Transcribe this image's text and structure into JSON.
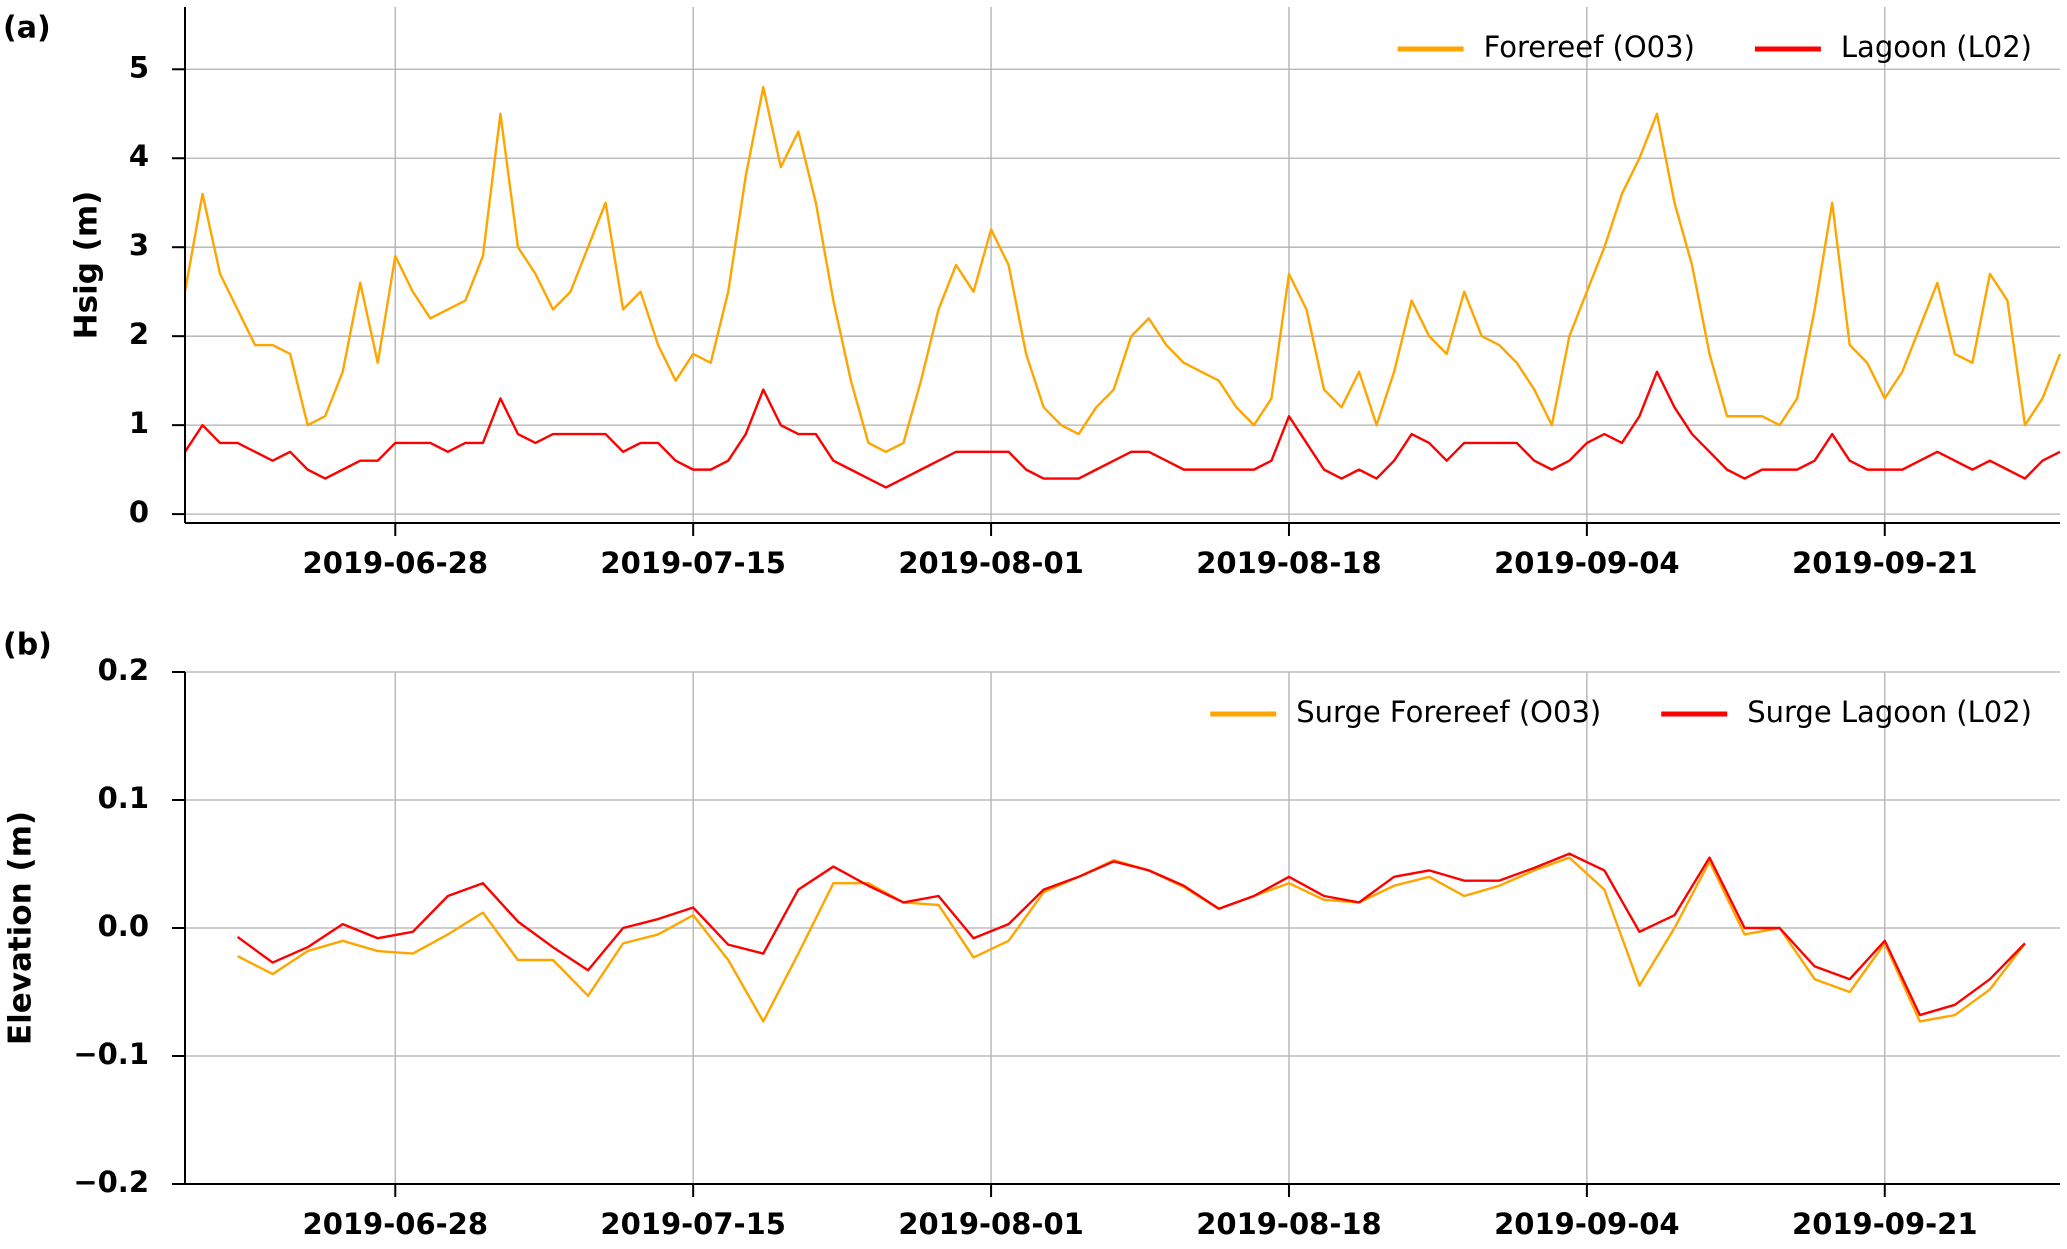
{
  "chart_data": [
    {
      "type": "line",
      "panel_label": "(a)",
      "ylabel": "Hsig (m)",
      "x": [
        "2019-06-16",
        "2019-06-17",
        "2019-06-18",
        "2019-06-19",
        "2019-06-20",
        "2019-06-21",
        "2019-06-22",
        "2019-06-23",
        "2019-06-24",
        "2019-06-25",
        "2019-06-26",
        "2019-06-27",
        "2019-06-28",
        "2019-06-29",
        "2019-06-30",
        "2019-07-01",
        "2019-07-02",
        "2019-07-03",
        "2019-07-04",
        "2019-07-05",
        "2019-07-06",
        "2019-07-07",
        "2019-07-08",
        "2019-07-09",
        "2019-07-10",
        "2019-07-11",
        "2019-07-12",
        "2019-07-13",
        "2019-07-14",
        "2019-07-15",
        "2019-07-16",
        "2019-07-17",
        "2019-07-18",
        "2019-07-19",
        "2019-07-20",
        "2019-07-21",
        "2019-07-22",
        "2019-07-23",
        "2019-07-24",
        "2019-07-25",
        "2019-07-26",
        "2019-07-27",
        "2019-07-28",
        "2019-07-29",
        "2019-07-30",
        "2019-07-31",
        "2019-08-01",
        "2019-08-02",
        "2019-08-03",
        "2019-08-04",
        "2019-08-05",
        "2019-08-06",
        "2019-08-07",
        "2019-08-08",
        "2019-08-09",
        "2019-08-10",
        "2019-08-11",
        "2019-08-12",
        "2019-08-13",
        "2019-08-14",
        "2019-08-15",
        "2019-08-16",
        "2019-08-17",
        "2019-08-18",
        "2019-08-19",
        "2019-08-20",
        "2019-08-21",
        "2019-08-22",
        "2019-08-23",
        "2019-08-24",
        "2019-08-25",
        "2019-08-26",
        "2019-08-27",
        "2019-08-28",
        "2019-08-29",
        "2019-08-30",
        "2019-08-31",
        "2019-09-01",
        "2019-09-02",
        "2019-09-03",
        "2019-09-04",
        "2019-09-05",
        "2019-09-06",
        "2019-09-07",
        "2019-09-08",
        "2019-09-09",
        "2019-09-10",
        "2019-09-11",
        "2019-09-12",
        "2019-09-13",
        "2019-09-14",
        "2019-09-15",
        "2019-09-16",
        "2019-09-17",
        "2019-09-18",
        "2019-09-19",
        "2019-09-20",
        "2019-09-21",
        "2019-09-22",
        "2019-09-23",
        "2019-09-24",
        "2019-09-25",
        "2019-09-26",
        "2019-09-27",
        "2019-09-28",
        "2019-09-29",
        "2019-09-30",
        "2019-10-01"
      ],
      "series": [
        {
          "name": "Forereef (O03)",
          "color": "#ffa500",
          "values": [
            2.5,
            3.6,
            2.7,
            2.3,
            1.9,
            1.9,
            1.8,
            1.0,
            1.1,
            1.6,
            2.6,
            1.7,
            2.9,
            2.5,
            2.2,
            2.3,
            2.4,
            2.9,
            4.5,
            3.0,
            2.7,
            2.3,
            2.5,
            3.0,
            3.5,
            2.3,
            2.5,
            1.9,
            1.5,
            1.8,
            1.7,
            2.5,
            3.8,
            4.8,
            3.9,
            4.3,
            3.5,
            2.4,
            1.5,
            0.8,
            0.7,
            0.8,
            1.5,
            2.3,
            2.8,
            2.5,
            3.2,
            2.8,
            1.8,
            1.2,
            1.0,
            0.9,
            1.2,
            1.4,
            2.0,
            2.2,
            1.9,
            1.7,
            1.6,
            1.5,
            1.2,
            1.0,
            1.3,
            2.7,
            2.3,
            1.4,
            1.2,
            1.6,
            1.0,
            1.6,
            2.4,
            2.0,
            1.8,
            2.5,
            2.0,
            1.9,
            1.7,
            1.4,
            1.0,
            2.0,
            2.5,
            3.0,
            3.6,
            4.0,
            4.5,
            3.5,
            2.8,
            1.8,
            1.1,
            1.1,
            1.1,
            1.0,
            1.3,
            2.3,
            3.5,
            1.9,
            1.7,
            1.3,
            1.6,
            2.1,
            2.6,
            1.8,
            1.7,
            2.7,
            2.4,
            1.0,
            1.3,
            1.8
          ]
        },
        {
          "name": "Lagoon (L02)",
          "color": "#ff0000",
          "values": [
            0.7,
            1.0,
            0.8,
            0.8,
            0.7,
            0.6,
            0.7,
            0.5,
            0.4,
            0.5,
            0.6,
            0.6,
            0.8,
            0.8,
            0.8,
            0.7,
            0.8,
            0.8,
            1.3,
            0.9,
            0.8,
            0.9,
            0.9,
            0.9,
            0.9,
            0.7,
            0.8,
            0.8,
            0.6,
            0.5,
            0.5,
            0.6,
            0.9,
            1.4,
            1.0,
            0.9,
            0.9,
            0.6,
            0.5,
            0.4,
            0.3,
            0.4,
            0.5,
            0.6,
            0.7,
            0.7,
            0.7,
            0.7,
            0.5,
            0.4,
            0.4,
            0.4,
            0.5,
            0.6,
            0.7,
            0.7,
            0.6,
            0.5,
            0.5,
            0.5,
            0.5,
            0.5,
            0.6,
            1.1,
            0.8,
            0.5,
            0.4,
            0.5,
            0.4,
            0.6,
            0.9,
            0.8,
            0.6,
            0.8,
            0.8,
            0.8,
            0.8,
            0.6,
            0.5,
            0.6,
            0.8,
            0.9,
            0.8,
            1.1,
            1.6,
            1.2,
            0.9,
            0.7,
            0.5,
            0.4,
            0.5,
            0.5,
            0.5,
            0.6,
            0.9,
            0.6,
            0.5,
            0.5,
            0.5,
            0.6,
            0.7,
            0.6,
            0.5,
            0.6,
            0.5,
            0.4,
            0.6,
            0.7
          ]
        }
      ],
      "xlim": [
        "2019-06-16",
        "2019-10-01"
      ],
      "xticks": [
        "2019-06-28",
        "2019-07-15",
        "2019-08-01",
        "2019-08-18",
        "2019-09-04",
        "2019-09-21"
      ],
      "ylim": [
        -0.1,
        5.7
      ],
      "yticks": [
        0,
        1,
        2,
        3,
        4,
        5
      ],
      "grid": true,
      "legend": "upper right"
    },
    {
      "type": "line",
      "panel_label": "(b)",
      "ylabel": "Elevation (m)",
      "x": [
        "2019-06-19",
        "2019-06-21",
        "2019-06-23",
        "2019-06-25",
        "2019-06-27",
        "2019-06-29",
        "2019-07-01",
        "2019-07-03",
        "2019-07-05",
        "2019-07-07",
        "2019-07-09",
        "2019-07-11",
        "2019-07-13",
        "2019-07-15",
        "2019-07-17",
        "2019-07-19",
        "2019-07-21",
        "2019-07-23",
        "2019-07-25",
        "2019-07-27",
        "2019-07-29",
        "2019-07-31",
        "2019-08-02",
        "2019-08-04",
        "2019-08-06",
        "2019-08-08",
        "2019-08-10",
        "2019-08-12",
        "2019-08-14",
        "2019-08-16",
        "2019-08-18",
        "2019-08-20",
        "2019-08-22",
        "2019-08-24",
        "2019-08-26",
        "2019-08-28",
        "2019-08-30",
        "2019-09-01",
        "2019-09-03",
        "2019-09-05",
        "2019-09-07",
        "2019-09-09",
        "2019-09-11",
        "2019-09-13",
        "2019-09-15",
        "2019-09-17",
        "2019-09-19",
        "2019-09-21",
        "2019-09-23",
        "2019-09-25",
        "2019-09-27",
        "2019-09-29"
      ],
      "series": [
        {
          "name": "Surge Forereef (O03)",
          "color": "#ffa500",
          "values": [
            -0.022,
            -0.036,
            -0.018,
            -0.01,
            -0.018,
            -0.02,
            -0.005,
            0.012,
            -0.025,
            -0.025,
            -0.053,
            -0.012,
            -0.005,
            0.01,
            -0.025,
            -0.073,
            -0.02,
            0.035,
            0.035,
            0.02,
            0.018,
            -0.023,
            -0.01,
            0.028,
            0.04,
            0.053,
            0.045,
            0.032,
            0.015,
            0.025,
            0.035,
            0.022,
            0.02,
            0.033,
            0.04,
            0.025,
            0.033,
            0.045,
            0.055,
            0.03,
            -0.045,
            0.0,
            0.052,
            -0.005,
            0.0,
            -0.04,
            -0.05,
            -0.012,
            -0.073,
            -0.068,
            -0.048,
            -0.012
          ]
        },
        {
          "name": "Surge Lagoon (L02)",
          "color": "#ff0000",
          "values": [
            -0.007,
            -0.027,
            -0.015,
            0.003,
            -0.008,
            -0.003,
            0.025,
            0.035,
            0.005,
            -0.015,
            -0.033,
            0.0,
            0.007,
            0.016,
            -0.013,
            -0.02,
            0.03,
            0.048,
            0.033,
            0.02,
            0.025,
            -0.008,
            0.003,
            0.03,
            0.04,
            0.052,
            0.045,
            0.033,
            0.015,
            0.025,
            0.04,
            0.025,
            0.02,
            0.04,
            0.045,
            0.037,
            0.037,
            0.047,
            0.058,
            0.045,
            -0.003,
            0.01,
            0.055,
            0.0,
            0.0,
            -0.03,
            -0.04,
            -0.01,
            -0.068,
            -0.06,
            -0.04,
            -0.012
          ]
        }
      ],
      "xlim": [
        "2019-06-16",
        "2019-10-01"
      ],
      "xticks": [
        "2019-06-28",
        "2019-07-15",
        "2019-08-01",
        "2019-08-18",
        "2019-09-04",
        "2019-09-21"
      ],
      "ylim": [
        -0.2,
        0.2
      ],
      "yticks": [
        {
          "value": -0.2,
          "label": "−0.2"
        },
        {
          "value": -0.1,
          "label": "−0.1"
        },
        {
          "value": 0,
          "label": "0.0"
        },
        0.1,
        0.2
      ],
      "grid": true,
      "legend": "upper right"
    }
  ]
}
